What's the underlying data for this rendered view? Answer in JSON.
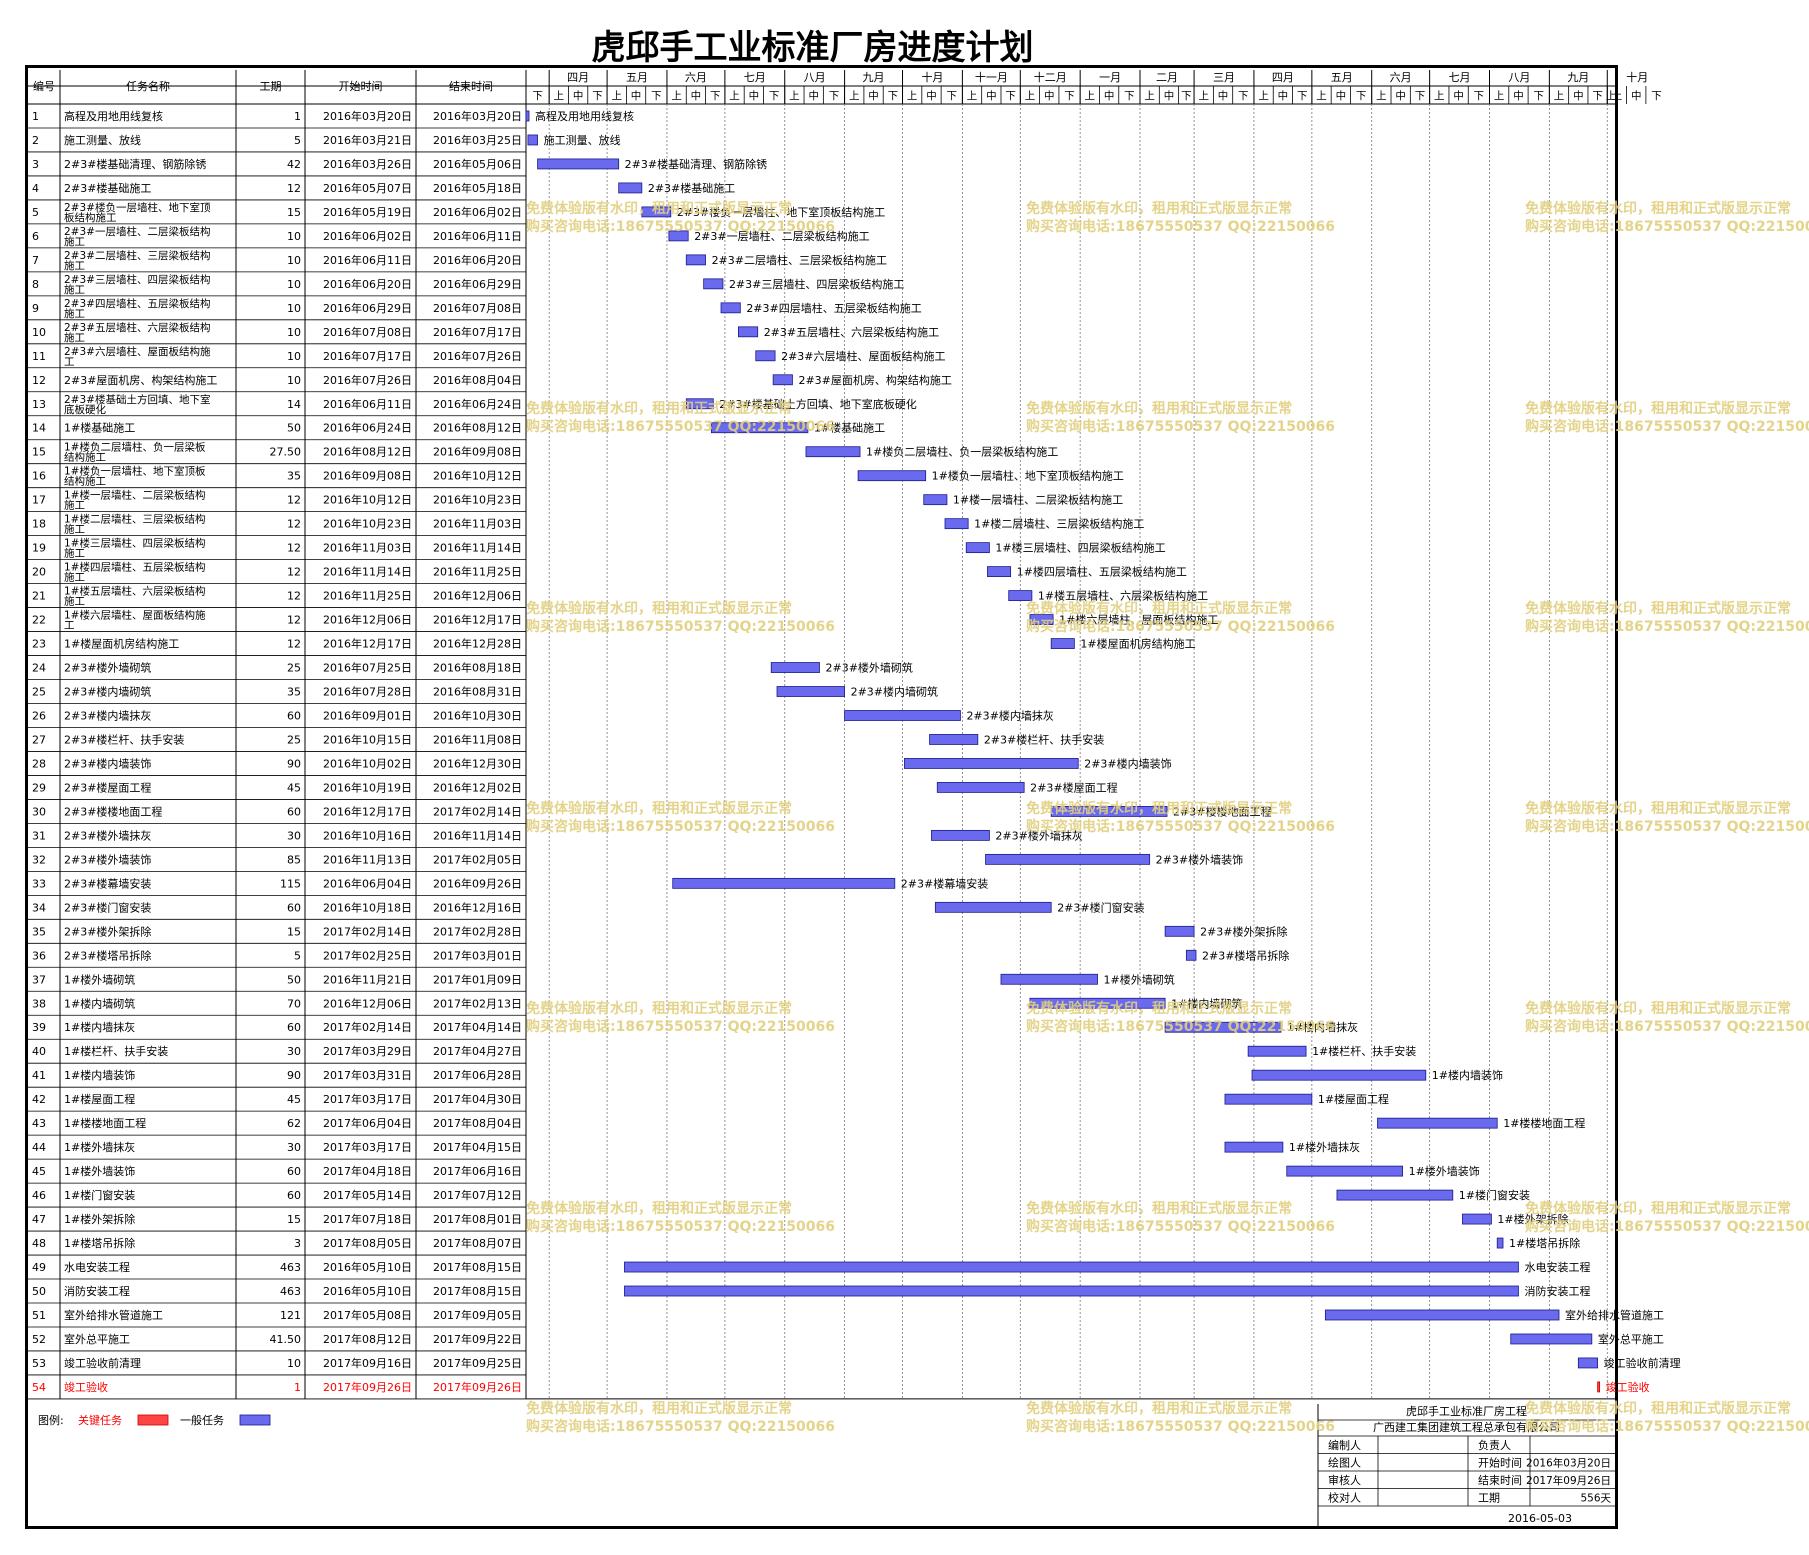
{
  "title": "虎邱手工业标准厂房进度计划",
  "headers": {
    "id": "编号",
    "name": "任务名称",
    "duration": "工期",
    "start": "开始时间",
    "end": "结束时间"
  },
  "timeline": {
    "months": [
      "四月",
      "五月",
      "六月",
      "七月",
      "八月",
      "九月",
      "十月",
      "十一月",
      "十二月",
      "一月",
      "二月",
      "三月",
      "四月",
      "五月",
      "六月",
      "七月",
      "八月",
      "九月",
      "十月"
    ],
    "lead_label": "下",
    "sub_labels": [
      "上",
      "中",
      "下"
    ],
    "trail_label": "上"
  },
  "tasks": [
    {
      "id": "1",
      "name": "高程及用地用线复核",
      "name2": "",
      "dur": "1",
      "start": "2016年03月20日",
      "end": "2016年03月20日",
      "critical": false,
      "s": "2016-03-20",
      "e": "2016-03-20"
    },
    {
      "id": "2",
      "name": "施工测量、放线",
      "name2": "",
      "dur": "5",
      "start": "2016年03月21日",
      "end": "2016年03月25日",
      "critical": false,
      "s": "2016-03-21",
      "e": "2016-03-25"
    },
    {
      "id": "3",
      "name": "2#3#楼基础清理、钢筋除锈",
      "name2": "",
      "dur": "42",
      "start": "2016年03月26日",
      "end": "2016年05月06日",
      "critical": false,
      "s": "2016-03-26",
      "e": "2016-05-06"
    },
    {
      "id": "4",
      "name": "2#3#楼基础施工",
      "name2": "",
      "dur": "12",
      "start": "2016年05月07日",
      "end": "2016年05月18日",
      "critical": false,
      "s": "2016-05-07",
      "e": "2016-05-18"
    },
    {
      "id": "5",
      "name": "2#3#楼负一层墙柱、地下室顶",
      "name2": "板结构施工",
      "dur": "15",
      "start": "2016年05月19日",
      "end": "2016年06月02日",
      "critical": false,
      "s": "2016-05-19",
      "e": "2016-06-02"
    },
    {
      "id": "6",
      "name": "2#3#一层墙柱、二层梁板结构",
      "name2": "施工",
      "dur": "10",
      "start": "2016年06月02日",
      "end": "2016年06月11日",
      "critical": false,
      "s": "2016-06-02",
      "e": "2016-06-11"
    },
    {
      "id": "7",
      "name": "2#3#二层墙柱、三层梁板结构",
      "name2": "施工",
      "dur": "10",
      "start": "2016年06月11日",
      "end": "2016年06月20日",
      "critical": false,
      "s": "2016-06-11",
      "e": "2016-06-20"
    },
    {
      "id": "8",
      "name": "2#3#三层墙柱、四层梁板结构",
      "name2": "施工",
      "dur": "10",
      "start": "2016年06月20日",
      "end": "2016年06月29日",
      "critical": false,
      "s": "2016-06-20",
      "e": "2016-06-29"
    },
    {
      "id": "9",
      "name": "2#3#四层墙柱、五层梁板结构",
      "name2": "施工",
      "dur": "10",
      "start": "2016年06月29日",
      "end": "2016年07月08日",
      "critical": false,
      "s": "2016-06-29",
      "e": "2016-07-08"
    },
    {
      "id": "10",
      "name": "2#3#五层墙柱、六层梁板结构",
      "name2": "施工",
      "dur": "10",
      "start": "2016年07月08日",
      "end": "2016年07月17日",
      "critical": false,
      "s": "2016-07-08",
      "e": "2016-07-17"
    },
    {
      "id": "11",
      "name": "2#3#六层墙柱、屋面板结构施",
      "name2": "工",
      "dur": "10",
      "start": "2016年07月17日",
      "end": "2016年07月26日",
      "critical": false,
      "s": "2016-07-17",
      "e": "2016-07-26"
    },
    {
      "id": "12",
      "name": "2#3#屋面机房、构架结构施工",
      "name2": "",
      "dur": "10",
      "start": "2016年07月26日",
      "end": "2016年08月04日",
      "critical": false,
      "s": "2016-07-26",
      "e": "2016-08-04"
    },
    {
      "id": "13",
      "name": "2#3#楼基础土方回填、地下室",
      "name2": "底板硬化",
      "dur": "14",
      "start": "2016年06月11日",
      "end": "2016年06月24日",
      "critical": false,
      "s": "2016-06-11",
      "e": "2016-06-24"
    },
    {
      "id": "14",
      "name": "1#楼基础施工",
      "name2": "",
      "dur": "50",
      "start": "2016年06月24日",
      "end": "2016年08月12日",
      "critical": false,
      "s": "2016-06-24",
      "e": "2016-08-12"
    },
    {
      "id": "15",
      "name": "1#楼负二层墙柱、负一层梁板",
      "name2": "结构施工",
      "dur": "27.50",
      "start": "2016年08月12日",
      "end": "2016年09月08日",
      "critical": false,
      "s": "2016-08-12",
      "e": "2016-09-08"
    },
    {
      "id": "16",
      "name": "1#楼负一层墙柱、地下室顶板",
      "name2": "结构施工",
      "dur": "35",
      "start": "2016年09月08日",
      "end": "2016年10月12日",
      "critical": false,
      "s": "2016-09-08",
      "e": "2016-10-12"
    },
    {
      "id": "17",
      "name": "1#楼一层墙柱、二层梁板结构",
      "name2": "施工",
      "dur": "12",
      "start": "2016年10月12日",
      "end": "2016年10月23日",
      "critical": false,
      "s": "2016-10-12",
      "e": "2016-10-23"
    },
    {
      "id": "18",
      "name": "1#楼二层墙柱、三层梁板结构",
      "name2": "施工",
      "dur": "12",
      "start": "2016年10月23日",
      "end": "2016年11月03日",
      "critical": false,
      "s": "2016-10-23",
      "e": "2016-11-03"
    },
    {
      "id": "19",
      "name": "1#楼三层墙柱、四层梁板结构",
      "name2": "施工",
      "dur": "12",
      "start": "2016年11月03日",
      "end": "2016年11月14日",
      "critical": false,
      "s": "2016-11-03",
      "e": "2016-11-14"
    },
    {
      "id": "20",
      "name": "1#楼四层墙柱、五层梁板结构",
      "name2": "施工",
      "dur": "12",
      "start": "2016年11月14日",
      "end": "2016年11月25日",
      "critical": false,
      "s": "2016-11-14",
      "e": "2016-11-25"
    },
    {
      "id": "21",
      "name": "1#楼五层墙柱、六层梁板结构",
      "name2": "施工",
      "dur": "12",
      "start": "2016年11月25日",
      "end": "2016年12月06日",
      "critical": false,
      "s": "2016-11-25",
      "e": "2016-12-06"
    },
    {
      "id": "22",
      "name": "1#楼六层墙柱、屋面板结构施",
      "name2": "工",
      "dur": "12",
      "start": "2016年12月06日",
      "end": "2016年12月17日",
      "critical": false,
      "s": "2016-12-06",
      "e": "2016-12-17"
    },
    {
      "id": "23",
      "name": "1#楼屋面机房结构施工",
      "name2": "",
      "dur": "12",
      "start": "2016年12月17日",
      "end": "2016年12月28日",
      "critical": false,
      "s": "2016-12-17",
      "e": "2016-12-28"
    },
    {
      "id": "24",
      "name": "2#3#楼外墙砌筑",
      "name2": "",
      "dur": "25",
      "start": "2016年07月25日",
      "end": "2016年08月18日",
      "critical": false,
      "s": "2016-07-25",
      "e": "2016-08-18"
    },
    {
      "id": "25",
      "name": "2#3#楼内墙砌筑",
      "name2": "",
      "dur": "35",
      "start": "2016年07月28日",
      "end": "2016年08月31日",
      "critical": false,
      "s": "2016-07-28",
      "e": "2016-08-31"
    },
    {
      "id": "26",
      "name": "2#3#楼内墙抹灰",
      "name2": "",
      "dur": "60",
      "start": "2016年09月01日",
      "end": "2016年10月30日",
      "critical": false,
      "s": "2016-09-01",
      "e": "2016-10-30"
    },
    {
      "id": "27",
      "name": "2#3#楼栏杆、扶手安装",
      "name2": "",
      "dur": "25",
      "start": "2016年10月15日",
      "end": "2016年11月08日",
      "critical": false,
      "s": "2016-10-15",
      "e": "2016-11-08"
    },
    {
      "id": "28",
      "name": "2#3#楼内墙装饰",
      "name2": "",
      "dur": "90",
      "start": "2016年10月02日",
      "end": "2016年12月30日",
      "critical": false,
      "s": "2016-10-02",
      "e": "2016-12-30"
    },
    {
      "id": "29",
      "name": "2#3#楼屋面工程",
      "name2": "",
      "dur": "45",
      "start": "2016年10月19日",
      "end": "2016年12月02日",
      "critical": false,
      "s": "2016-10-19",
      "e": "2016-12-02"
    },
    {
      "id": "30",
      "name": "2#3#楼楼地面工程",
      "name2": "",
      "dur": "60",
      "start": "2016年12月17日",
      "end": "2017年02月14日",
      "critical": false,
      "s": "2016-12-17",
      "e": "2017-02-14"
    },
    {
      "id": "31",
      "name": "2#3#楼外墙抹灰",
      "name2": "",
      "dur": "30",
      "start": "2016年10月16日",
      "end": "2016年11月14日",
      "critical": false,
      "s": "2016-10-16",
      "e": "2016-11-14"
    },
    {
      "id": "32",
      "name": "2#3#楼外墙装饰",
      "name2": "",
      "dur": "85",
      "start": "2016年11月13日",
      "end": "2017年02月05日",
      "critical": false,
      "s": "2016-11-13",
      "e": "2017-02-05"
    },
    {
      "id": "33",
      "name": "2#3#楼幕墙安装",
      "name2": "",
      "dur": "115",
      "start": "2016年06月04日",
      "end": "2016年09月26日",
      "critical": false,
      "s": "2016-06-04",
      "e": "2016-09-26"
    },
    {
      "id": "34",
      "name": "2#3#楼门窗安装",
      "name2": "",
      "dur": "60",
      "start": "2016年10月18日",
      "end": "2016年12月16日",
      "critical": false,
      "s": "2016-10-18",
      "e": "2016-12-16"
    },
    {
      "id": "35",
      "name": "2#3#楼外架拆除",
      "name2": "",
      "dur": "15",
      "start": "2017年02月14日",
      "end": "2017年02月28日",
      "critical": false,
      "s": "2017-02-14",
      "e": "2017-02-28"
    },
    {
      "id": "36",
      "name": "2#3#楼塔吊拆除",
      "name2": "",
      "dur": "5",
      "start": "2017年02月25日",
      "end": "2017年03月01日",
      "critical": false,
      "s": "2017-02-25",
      "e": "2017-03-01"
    },
    {
      "id": "37",
      "name": "1#楼外墙砌筑",
      "name2": "",
      "dur": "50",
      "start": "2016年11月21日",
      "end": "2017年01月09日",
      "critical": false,
      "s": "2016-11-21",
      "e": "2017-01-09"
    },
    {
      "id": "38",
      "name": "1#楼内墙砌筑",
      "name2": "",
      "dur": "70",
      "start": "2016年12月06日",
      "end": "2017年02月13日",
      "critical": false,
      "s": "2016-12-06",
      "e": "2017-02-13"
    },
    {
      "id": "39",
      "name": "1#楼内墙抹灰",
      "name2": "",
      "dur": "60",
      "start": "2017年02月14日",
      "end": "2017年04月14日",
      "critical": false,
      "s": "2017-02-14",
      "e": "2017-04-14"
    },
    {
      "id": "40",
      "name": "1#楼栏杆、扶手安装",
      "name2": "",
      "dur": "30",
      "start": "2017年03月29日",
      "end": "2017年04月27日",
      "critical": false,
      "s": "2017-03-29",
      "e": "2017-04-27"
    },
    {
      "id": "41",
      "name": "1#楼内墙装饰",
      "name2": "",
      "dur": "90",
      "start": "2017年03月31日",
      "end": "2017年06月28日",
      "critical": false,
      "s": "2017-03-31",
      "e": "2017-06-28"
    },
    {
      "id": "42",
      "name": "1#楼屋面工程",
      "name2": "",
      "dur": "45",
      "start": "2017年03月17日",
      "end": "2017年04月30日",
      "critical": false,
      "s": "2017-03-17",
      "e": "2017-04-30"
    },
    {
      "id": "43",
      "name": "1#楼楼地面工程",
      "name2": "",
      "dur": "62",
      "start": "2017年06月04日",
      "end": "2017年08月04日",
      "critical": false,
      "s": "2017-06-04",
      "e": "2017-08-04"
    },
    {
      "id": "44",
      "name": "1#楼外墙抹灰",
      "name2": "",
      "dur": "30",
      "start": "2017年03月17日",
      "end": "2017年04月15日",
      "critical": false,
      "s": "2017-03-17",
      "e": "2017-04-15"
    },
    {
      "id": "45",
      "name": "1#楼外墙装饰",
      "name2": "",
      "dur": "60",
      "start": "2017年04月18日",
      "end": "2017年06月16日",
      "critical": false,
      "s": "2017-04-18",
      "e": "2017-06-16"
    },
    {
      "id": "46",
      "name": "1#楼门窗安装",
      "name2": "",
      "dur": "60",
      "start": "2017年05月14日",
      "end": "2017年07月12日",
      "critical": false,
      "s": "2017-05-14",
      "e": "2017-07-12"
    },
    {
      "id": "47",
      "name": "1#楼外架拆除",
      "name2": "",
      "dur": "15",
      "start": "2017年07月18日",
      "end": "2017年08月01日",
      "critical": false,
      "s": "2017-07-18",
      "e": "2017-08-01"
    },
    {
      "id": "48",
      "name": "1#楼塔吊拆除",
      "name2": "",
      "dur": "3",
      "start": "2017年08月05日",
      "end": "2017年08月07日",
      "critical": false,
      "s": "2017-08-05",
      "e": "2017-08-07"
    },
    {
      "id": "49",
      "name": "水电安装工程",
      "name2": "",
      "dur": "463",
      "start": "2016年05月10日",
      "end": "2017年08月15日",
      "critical": false,
      "s": "2016-05-10",
      "e": "2017-08-15"
    },
    {
      "id": "50",
      "name": "消防安装工程",
      "name2": "",
      "dur": "463",
      "start": "2016年05月10日",
      "end": "2017年08月15日",
      "critical": false,
      "s": "2016-05-10",
      "e": "2017-08-15"
    },
    {
      "id": "51",
      "name": "室外给排水管道施工",
      "name2": "",
      "dur": "121",
      "start": "2017年05月08日",
      "end": "2017年09月05日",
      "critical": false,
      "s": "2017-05-08",
      "e": "2017-09-05"
    },
    {
      "id": "52",
      "name": "室外总平施工",
      "name2": "",
      "dur": "41.50",
      "start": "2017年08月12日",
      "end": "2017年09月22日",
      "critical": false,
      "s": "2017-08-12",
      "e": "2017-09-22"
    },
    {
      "id": "53",
      "name": "竣工验收前清理",
      "name2": "",
      "dur": "10",
      "start": "2017年09月16日",
      "end": "2017年09月25日",
      "critical": false,
      "s": "2017-09-16",
      "e": "2017-09-25"
    },
    {
      "id": "54",
      "name": "竣工验收",
      "name2": "",
      "dur": "1",
      "start": "2017年09月26日",
      "end": "2017年09月26日",
      "critical": true,
      "s": "2017-09-26",
      "e": "2017-09-26"
    }
  ],
  "legend": {
    "label": "图例:",
    "critical": "关键任务",
    "normal": "一般任务"
  },
  "footer": {
    "project": "虎邱手工业标准厂房工程",
    "company": "广西建工集团建筑工程总承包有限公司",
    "rows": [
      [
        "编制人",
        "",
        "负责人",
        ""
      ],
      [
        "绘图人",
        "",
        "开始时间",
        "2016年03月20日"
      ],
      [
        "审核人",
        "",
        "结束时间",
        "2017年09月26日"
      ],
      [
        "校对人",
        "",
        "工期",
        "556天"
      ]
    ],
    "date": "2016-05-03"
  },
  "watermark": {
    "line1": "免费体验版有水印，租用和正式版显示正常",
    "line2": "购买咨询电话:18675550537 QQ:22150066"
  },
  "chart_data": {
    "type": "gantt",
    "title": "虎邱手工业标准厂房进度计划",
    "x_range": [
      "2016-03-20",
      "2017-10-05"
    ],
    "x_unit": "旬 (上/中/下)",
    "colors": {
      "normal_bar": "#6a6aee",
      "critical_bar": "#ff4444",
      "critical_text": "#ff0000"
    }
  }
}
